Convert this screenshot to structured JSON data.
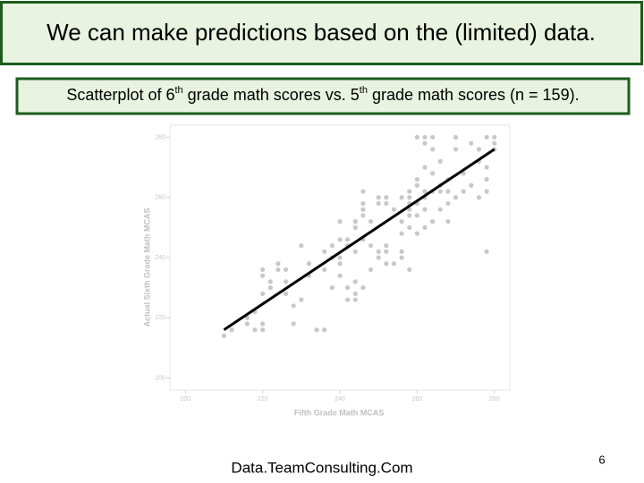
{
  "slide": {
    "title": "We can make predictions based on the (limited) data.",
    "caption": [
      "Scatterplot of 6",
      "th",
      " grade math scores vs. 5",
      "th",
      " grade math scores (n = 159)."
    ],
    "footer": "Data.TeamConsulting.Com",
    "page_number": "6"
  },
  "chart_data": {
    "type": "scatter",
    "x_label": "Fifth Grade Math MCAS",
    "y_label": "Actual Sixth Grade Math MCAS",
    "xlim": [
      196,
      284
    ],
    "ylim": [
      196,
      284
    ],
    "xticks": [
      200,
      220,
      240,
      260,
      280
    ],
    "yticks": [
      200,
      220,
      240,
      260,
      280
    ],
    "series": [
      {
        "color": "#c8c8c8",
        "x": [
          210,
          212,
          216,
          218,
          218,
          220,
          220,
          220,
          220,
          220,
          222,
          222,
          224,
          224,
          226,
          226,
          228,
          228,
          230,
          232,
          232,
          234,
          236,
          236,
          238,
          238,
          238,
          240,
          240,
          240,
          240,
          240,
          242,
          242,
          242,
          242,
          244,
          244,
          244,
          244,
          244,
          246,
          246,
          246,
          246,
          246,
          246,
          248,
          248,
          250,
          250,
          250,
          250,
          252,
          252,
          252,
          252,
          254,
          256,
          256,
          256,
          256,
          256,
          258,
          258,
          258,
          258,
          258,
          258,
          258,
          260,
          260,
          260,
          260,
          260,
          260,
          262,
          262,
          262,
          262,
          262,
          262,
          262,
          264,
          264,
          264,
          264,
          264,
          266,
          266,
          266,
          266,
          268,
          268,
          268,
          268,
          270,
          270,
          270,
          272,
          272,
          274,
          274,
          276,
          276,
          276,
          278,
          278,
          278,
          278,
          278,
          280,
          280,
          280,
          244,
          248,
          252,
          226,
          216,
          230,
          236,
          254
        ],
        "y": [
          214,
          216,
          218,
          222,
          216,
          216,
          218,
          228,
          236,
          234,
          230,
          232,
          236,
          238,
          236,
          228,
          224,
          218,
          244,
          234,
          238,
          216,
          216,
          242,
          240,
          244,
          230,
          234,
          238,
          240,
          246,
          252,
          230,
          244,
          246,
          226,
          226,
          228,
          242,
          250,
          252,
          230,
          246,
          254,
          256,
          258,
          262,
          244,
          252,
          258,
          260,
          240,
          242,
          242,
          258,
          260,
          244,
          238,
          240,
          242,
          248,
          252,
          260,
          236,
          250,
          254,
          256,
          258,
          260,
          262,
          248,
          254,
          258,
          264,
          266,
          280,
          250,
          256,
          260,
          262,
          270,
          278,
          280,
          252,
          262,
          268,
          276,
          280,
          256,
          262,
          264,
          272,
          252,
          258,
          262,
          266,
          260,
          276,
          280,
          262,
          268,
          264,
          278,
          260,
          272,
          276,
          262,
          266,
          270,
          242,
          280,
          276,
          278,
          280,
          232,
          236,
          238,
          232,
          220,
          226,
          236,
          256
        ]
      }
    ],
    "trend_line": {
      "color": "#000000",
      "x": [
        210,
        280
      ],
      "y": [
        216,
        276
      ]
    },
    "grid": false
  }
}
